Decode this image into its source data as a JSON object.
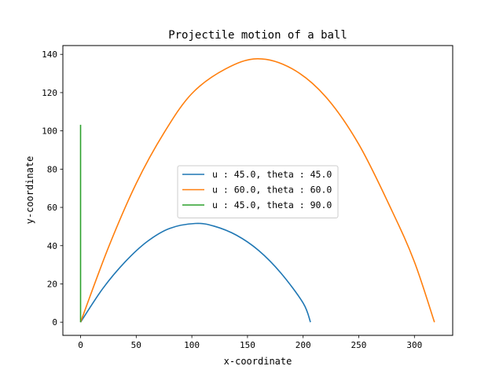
{
  "chart_data": {
    "type": "line",
    "title": "Projectile motion of a ball",
    "xlabel": "x-coordinate",
    "ylabel": "y-coordinate",
    "xlim": [
      -15.9,
      334.4
    ],
    "ylim": [
      -6.9,
      144.6
    ],
    "xticks": [
      0,
      50,
      100,
      150,
      200,
      250,
      300
    ],
    "yticks": [
      0,
      20,
      40,
      60,
      80,
      100,
      120,
      140
    ],
    "xtick_labels": [
      "0",
      "50",
      "100",
      "150",
      "200",
      "250",
      "300"
    ],
    "ytick_labels": [
      "0",
      "20",
      "40",
      "60",
      "80",
      "100",
      "120",
      "140"
    ],
    "grid": false,
    "legend_position": "center",
    "series": [
      {
        "name": "u : 45.0, theta : 45.0",
        "color": "#1f77b4",
        "x": [
          0,
          20,
          40,
          60,
          80,
          103.3,
          120,
          140,
          160,
          180,
          200,
          206.6
        ],
        "y": [
          0,
          17.6,
          31.5,
          42.2,
          49.0,
          51.6,
          50.2,
          45.5,
          37.5,
          25.7,
          10.0,
          0
        ]
      },
      {
        "name": "u : 60.0, theta : 60.0",
        "color": "#ff7f0e",
        "x": [
          0,
          25,
          50,
          75,
          100,
          130,
          159.0,
          190,
          220,
          250,
          280,
          300,
          318.0
        ],
        "y": [
          0,
          39.0,
          72.5,
          99.0,
          119.5,
          132.3,
          137.7,
          132.5,
          118.0,
          93.0,
          58.0,
          31.5,
          0
        ]
      },
      {
        "name": "u : 45.0, theta : 90.0",
        "color": "#2ca02c",
        "x": [
          0,
          0,
          0
        ],
        "y": [
          0,
          51.6,
          103.2
        ]
      }
    ]
  }
}
